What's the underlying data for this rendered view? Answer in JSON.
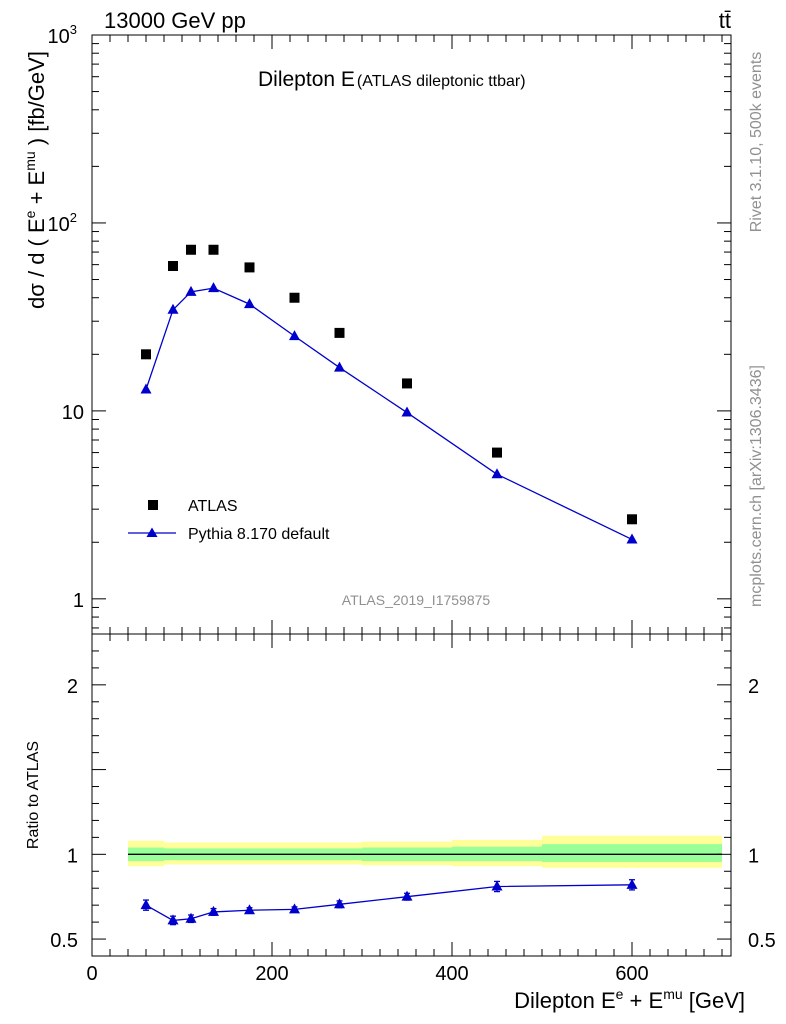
{
  "header": {
    "energy": "13000 GeV pp",
    "process": "tt̄"
  },
  "side_text": {
    "rivet": "Rivet 3.1.10,  500k events",
    "site": "mcplots.cern.ch [arXiv:1306.3436]"
  },
  "colors": {
    "data": "#000000",
    "mc": "#0000cc",
    "band_outer": "#ffff99",
    "band_inner": "#99ff99"
  },
  "chart_data": [
    {
      "type": "scatter",
      "title_main": "Dilepton E",
      "title_sub": "(ATLAS dileptonic ttbar)",
      "watermark": "ATLAS_2019_I1759875",
      "ylabel_text": "dσ / d ( E",
      "ylabel_sup1": "e",
      "ylabel_mid": " + E",
      "ylabel_sup2": "mu",
      "ylabel_end": " ) [fb/GeV]",
      "yscale": "log",
      "ylim": [
        0.65,
        1000
      ],
      "xlim": [
        0,
        710
      ],
      "y_ticks": [
        {
          "v": 1,
          "label": "1"
        },
        {
          "v": 10,
          "label": "10"
        },
        {
          "v": 100,
          "label": "10",
          "sup": "2"
        },
        {
          "v": 1000,
          "label": "10",
          "sup": "3"
        }
      ],
      "legend_position": "lower-left",
      "series": [
        {
          "name": "ATLAS",
          "marker": "square",
          "x": [
            60,
            90,
            110,
            135,
            175,
            225,
            275,
            350,
            450,
            600
          ],
          "y": [
            20,
            59,
            72,
            72,
            58,
            40,
            26,
            14,
            6.0,
            2.65
          ]
        },
        {
          "name": "Pythia 8.170 default",
          "marker": "triangle",
          "line": true,
          "x": [
            60,
            90,
            110,
            135,
            175,
            225,
            275,
            350,
            450,
            600
          ],
          "y": [
            13,
            34.5,
            43,
            45,
            37,
            25,
            17,
            9.8,
            4.6,
            2.07
          ]
        }
      ]
    },
    {
      "type": "line",
      "ylabel": "Ratio to ATLAS",
      "xlabel_text": "Dilepton E",
      "xlabel_sup1": "e",
      "xlabel_mid": " + E",
      "xlabel_sup2": "mu",
      "xlabel_end": " [GeV]",
      "xlim": [
        0,
        710
      ],
      "ylim": [
        0.4,
        2.3
      ],
      "x_ticks": [
        {
          "v": 0,
          "label": "0"
        },
        {
          "v": 200,
          "label": "200"
        },
        {
          "v": 400,
          "label": "400"
        },
        {
          "v": 600,
          "label": "600"
        }
      ],
      "y_ticks": [
        {
          "v": 0.5,
          "label": "0.5"
        },
        {
          "v": 1,
          "label": "1"
        },
        {
          "v": 2,
          "label": "2"
        }
      ],
      "bands": [
        {
          "x0": 40,
          "x1": 80,
          "outer": [
            0.93,
            1.08
          ],
          "inner": [
            0.96,
            1.04
          ]
        },
        {
          "x0": 80,
          "x1": 100,
          "outer": [
            0.94,
            1.07
          ],
          "inner": [
            0.965,
            1.035
          ]
        },
        {
          "x0": 100,
          "x1": 120,
          "outer": [
            0.94,
            1.07
          ],
          "inner": [
            0.965,
            1.035
          ]
        },
        {
          "x0": 120,
          "x1": 150,
          "outer": [
            0.94,
            1.07
          ],
          "inner": [
            0.965,
            1.035
          ]
        },
        {
          "x0": 150,
          "x1": 200,
          "outer": [
            0.94,
            1.07
          ],
          "inner": [
            0.965,
            1.035
          ]
        },
        {
          "x0": 200,
          "x1": 250,
          "outer": [
            0.94,
            1.07
          ],
          "inner": [
            0.965,
            1.035
          ]
        },
        {
          "x0": 250,
          "x1": 300,
          "outer": [
            0.94,
            1.07
          ],
          "inner": [
            0.965,
            1.035
          ]
        },
        {
          "x0": 300,
          "x1": 400,
          "outer": [
            0.935,
            1.075
          ],
          "inner": [
            0.96,
            1.04
          ]
        },
        {
          "x0": 400,
          "x1": 500,
          "outer": [
            0.93,
            1.085
          ],
          "inner": [
            0.96,
            1.045
          ]
        },
        {
          "x0": 500,
          "x1": 700,
          "outer": [
            0.92,
            1.11
          ],
          "inner": [
            0.955,
            1.06
          ]
        }
      ],
      "series": [
        {
          "name": "Pythia 8.170 default",
          "x": [
            60,
            90,
            110,
            135,
            175,
            225,
            275,
            350,
            450,
            600
          ],
          "y": [
            0.7,
            0.61,
            0.62,
            0.66,
            0.67,
            0.675,
            0.705,
            0.75,
            0.81,
            0.82
          ],
          "err": [
            0.03,
            0.025,
            0.022,
            0.02,
            0.015,
            0.015,
            0.02,
            0.02,
            0.03,
            0.03
          ]
        }
      ]
    }
  ]
}
